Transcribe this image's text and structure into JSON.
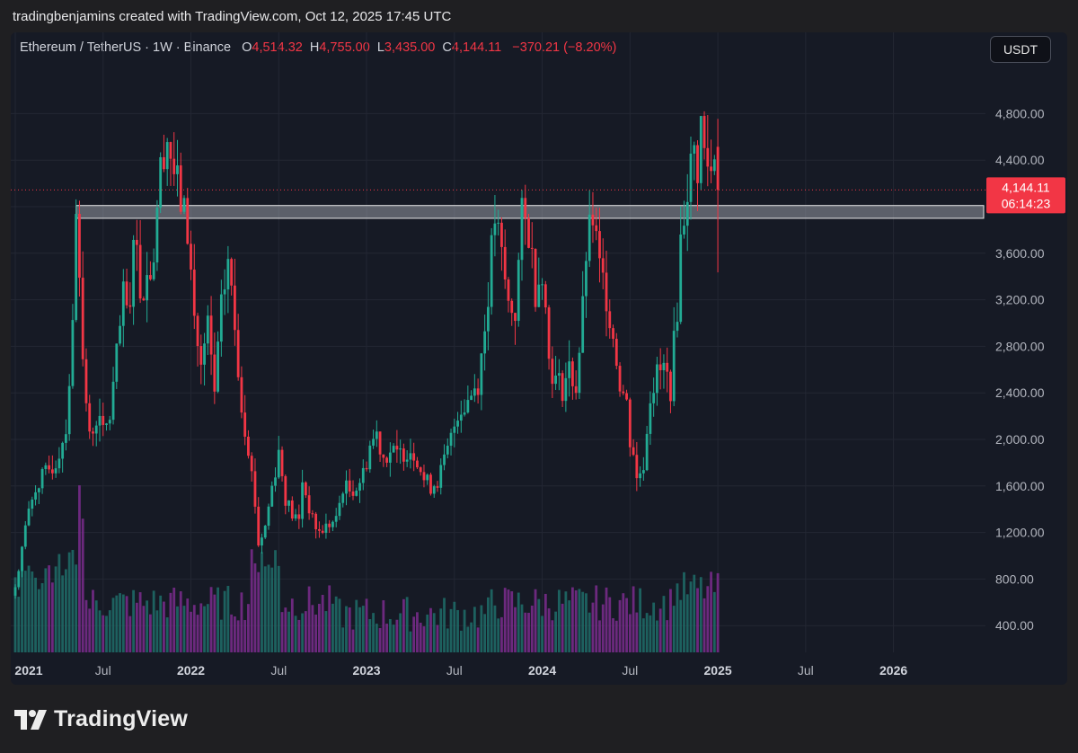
{
  "header": {
    "caption": "tradingbenjamins created with TradingView.com, Oct 12, 2025 17:45 UTC"
  },
  "legend": {
    "symbol": "Ethereum / TetherUS · 1W · Binance",
    "o_label": "O",
    "o": "4,514.32",
    "h_label": "H",
    "h": "4,755.00",
    "l_label": "L",
    "l": "3,435.00",
    "c_label": "C",
    "c": "4,144.11",
    "change": "−370.21 (−8.20%)"
  },
  "currency_button": "USDT",
  "price_tag": {
    "price": "4,144.11",
    "countdown": "06:14:23"
  },
  "brand": {
    "name": "TradingView"
  },
  "colors": {
    "up": "#22ab94",
    "down": "#f23645",
    "vol_up": "#1f6f6a",
    "vol_down": "#7b2d8e",
    "zone": "#b2b5be"
  },
  "chart_data": {
    "type": "candlestick",
    "pair": "ETH/USDT",
    "interval": "1W",
    "ylim": [
      300,
      5300
    ],
    "y_ticks": [
      400,
      800,
      1200,
      1600,
      2000,
      2400,
      2800,
      3200,
      3600,
      4000,
      4400,
      4800
    ],
    "y_tick_labels": [
      "400.00",
      "800.00",
      "1,200.00",
      "1,600.00",
      "2,000.00",
      "2,400.00",
      "2,800.00",
      "3,200.00",
      "3,600.00",
      "",
      "4,400.00",
      "4,800.00"
    ],
    "x_ticks": [
      {
        "label": "2021",
        "pos": 0
      },
      {
        "label": "Jul",
        "pos": 26
      },
      {
        "label": "2022",
        "pos": 52
      },
      {
        "label": "Jul",
        "pos": 78
      },
      {
        "label": "2023",
        "pos": 104
      },
      {
        "label": "Jul",
        "pos": 130
      },
      {
        "label": "2024",
        "pos": 156
      },
      {
        "label": "Jul",
        "pos": 182
      },
      {
        "label": "2025",
        "pos": 208
      },
      {
        "label": "Jul",
        "pos": 234
      },
      {
        "label": "2026",
        "pos": 260
      }
    ],
    "x_range": [
      0,
      283
    ],
    "last_close": 4144.11,
    "resistance_zone": {
      "low": 3900,
      "high": 4010,
      "from_week": 18
    },
    "weekly_close_anchors": [
      [
        0,
        730
      ],
      [
        3,
        1250
      ],
      [
        6,
        1600
      ],
      [
        9,
        1700
      ],
      [
        12,
        1800
      ],
      [
        15,
        2100
      ],
      [
        17,
        2950
      ],
      [
        18,
        4050
      ],
      [
        19,
        3550
      ],
      [
        20,
        2650
      ],
      [
        22,
        2000
      ],
      [
        24,
        2200
      ],
      [
        26,
        2050
      ],
      [
        28,
        2200
      ],
      [
        30,
        2700
      ],
      [
        32,
        3200
      ],
      [
        34,
        3050
      ],
      [
        35,
        3900
      ],
      [
        37,
        3300
      ],
      [
        39,
        3400
      ],
      [
        41,
        3600
      ],
      [
        42,
        4050
      ],
      [
        44,
        4550
      ],
      [
        45,
        4600
      ],
      [
        47,
        4300
      ],
      [
        49,
        4050
      ],
      [
        51,
        3800
      ],
      [
        53,
        3050
      ],
      [
        55,
        2600
      ],
      [
        57,
        2950
      ],
      [
        59,
        2400
      ],
      [
        61,
        3100
      ],
      [
        63,
        3550
      ],
      [
        65,
        2950
      ],
      [
        67,
        2300
      ],
      [
        69,
        1950
      ],
      [
        71,
        1450
      ],
      [
        72,
        1100
      ],
      [
        74,
        1250
      ],
      [
        76,
        1600
      ],
      [
        78,
        1900
      ],
      [
        80,
        1500
      ],
      [
        82,
        1350
      ],
      [
        84,
        1300
      ],
      [
        85,
        1650
      ],
      [
        88,
        1300
      ],
      [
        90,
        1200
      ],
      [
        92,
        1250
      ],
      [
        95,
        1300
      ],
      [
        97,
        1600
      ],
      [
        99,
        1560
      ],
      [
        101,
        1600
      ],
      [
        103,
        1700
      ],
      [
        105,
        1950
      ],
      [
        107,
        2050
      ],
      [
        109,
        1850
      ],
      [
        111,
        1900
      ],
      [
        113,
        1850
      ],
      [
        115,
        1900
      ],
      [
        117,
        1920
      ],
      [
        119,
        1850
      ],
      [
        121,
        1650
      ],
      [
        123,
        1600
      ],
      [
        125,
        1650
      ],
      [
        127,
        1800
      ],
      [
        129,
        2000
      ],
      [
        131,
        2250
      ],
      [
        133,
        2300
      ],
      [
        135,
        2400
      ],
      [
        137,
        2500
      ],
      [
        139,
        2950
      ],
      [
        141,
        3600
      ],
      [
        142,
        3900
      ],
      [
        144,
        3550
      ],
      [
        146,
        3150
      ],
      [
        148,
        3100
      ],
      [
        150,
        3900
      ],
      [
        152,
        3800
      ],
      [
        154,
        3300
      ],
      [
        156,
        3500
      ],
      [
        158,
        2700
      ],
      [
        160,
        2500
      ],
      [
        162,
        2450
      ],
      [
        164,
        2600
      ],
      [
        166,
        2450
      ],
      [
        168,
        3100
      ],
      [
        169,
        3600
      ],
      [
        171,
        3900
      ],
      [
        173,
        3450
      ],
      [
        175,
        3250
      ],
      [
        177,
        2900
      ],
      [
        179,
        2500
      ],
      [
        181,
        2300
      ],
      [
        182,
        2000
      ],
      [
        183,
        1900
      ],
      [
        184,
        1650
      ],
      [
        186,
        1800
      ],
      [
        188,
        2400
      ],
      [
        190,
        2550
      ],
      [
        192,
        2600
      ],
      [
        194,
        2450
      ],
      [
        196,
        3150
      ],
      [
        197,
        3700
      ],
      [
        199,
        4200
      ],
      [
        201,
        4450
      ],
      [
        202,
        4350
      ],
      [
        203,
        4700
      ],
      [
        204,
        4450
      ],
      [
        206,
        4300
      ],
      [
        207,
        4500
      ],
      [
        208,
        4144
      ]
    ]
  }
}
